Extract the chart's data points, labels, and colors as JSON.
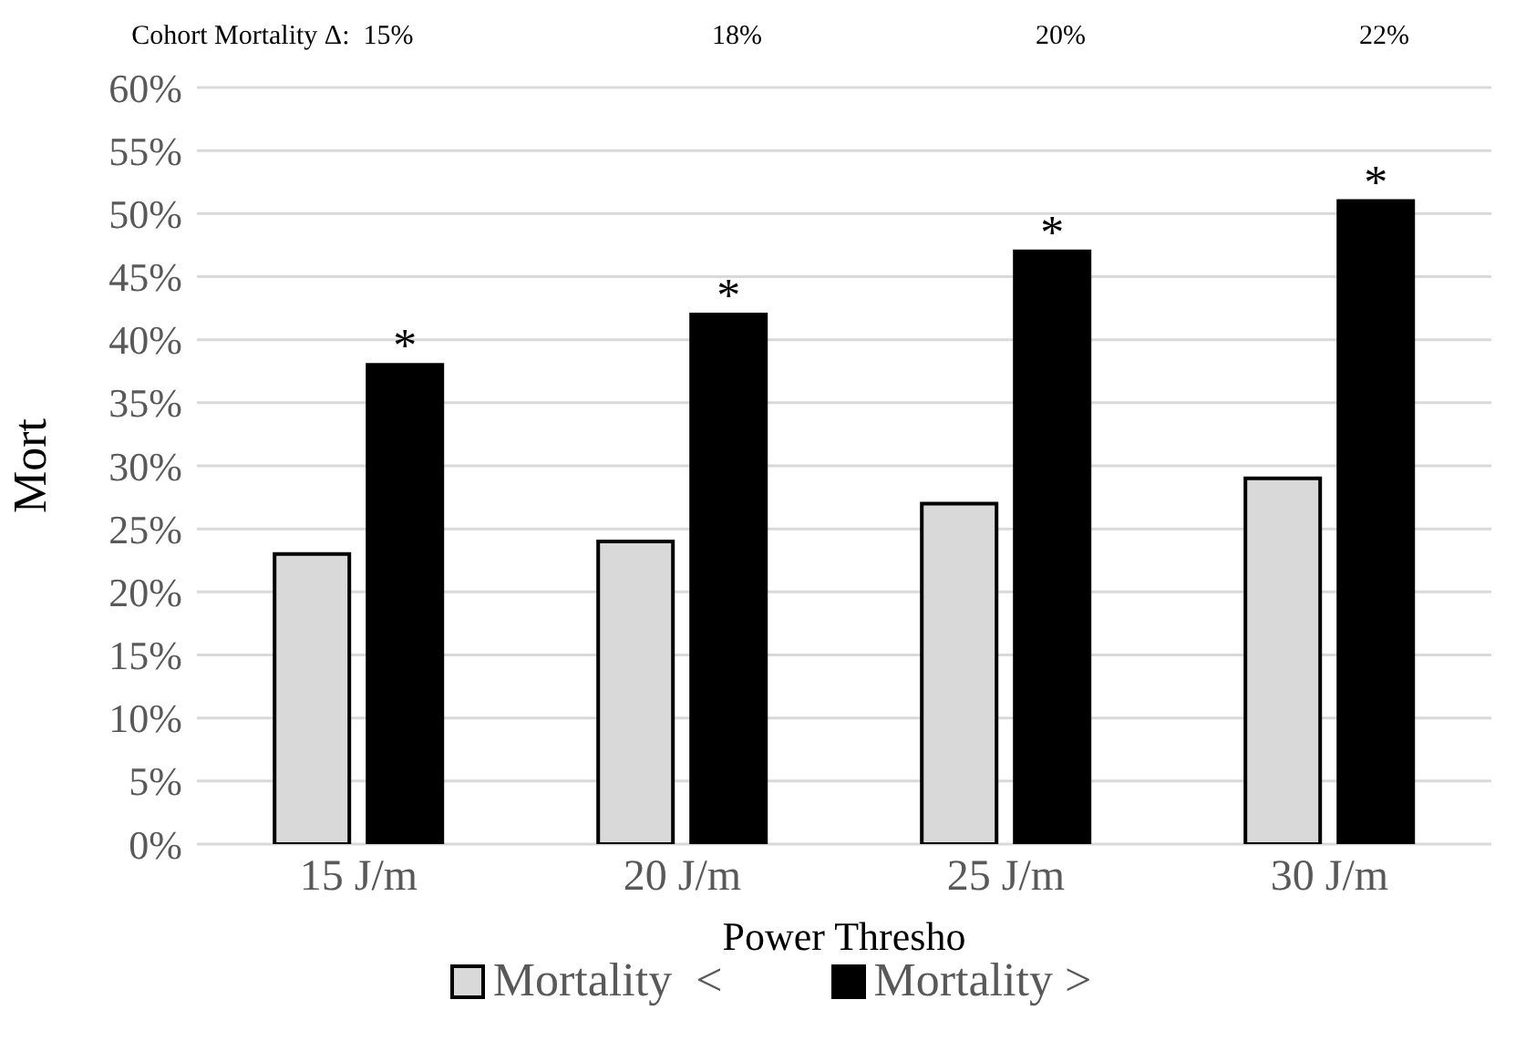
{
  "chart_data": {
    "type": "bar",
    "xlabel": "Power Thresho",
    "ylabel": "Mort",
    "categories": [
      "15 J/m",
      "20 J/m",
      "25 J/m",
      "30 J/m"
    ],
    "series": [
      {
        "name": "Mortality  <",
        "color": "#d9d9d9",
        "values": [
          23,
          24,
          27,
          29
        ]
      },
      {
        "name": "Mortality >",
        "color": "#000000",
        "values": [
          38,
          42,
          47,
          51
        ]
      }
    ],
    "ylim": [
      0,
      60
    ],
    "yticks": [
      {
        "value": 0,
        "label": "0%"
      },
      {
        "value": 5,
        "label": "5%"
      },
      {
        "value": 10,
        "label": "10%"
      },
      {
        "value": 15,
        "label": "15%"
      },
      {
        "value": 20,
        "label": "20%"
      },
      {
        "value": 25,
        "label": "25%"
      },
      {
        "value": 30,
        "label": "30%"
      },
      {
        "value": 35,
        "label": "35%"
      },
      {
        "value": 40,
        "label": "40%"
      },
      {
        "value": 45,
        "label": "45%"
      },
      {
        "value": 50,
        "label": "50%"
      },
      {
        "value": 55,
        "label": "55%"
      },
      {
        "value": 60,
        "label": "60%"
      }
    ],
    "grid": "y",
    "legend": "bottom",
    "annotations": [
      "Cohort Mortality Δ:  15%",
      "18%",
      "20%",
      "22%",
      {
        "text": "*",
        "x": "15 J/m",
        "y": 38
      },
      {
        "text": "*",
        "x": "20 J/m",
        "y": 42
      },
      {
        "text": "*",
        "x": "25 J/m",
        "y": 47
      },
      {
        "text": "*",
        "x": "30 J/m",
        "y": 51
      }
    ]
  }
}
